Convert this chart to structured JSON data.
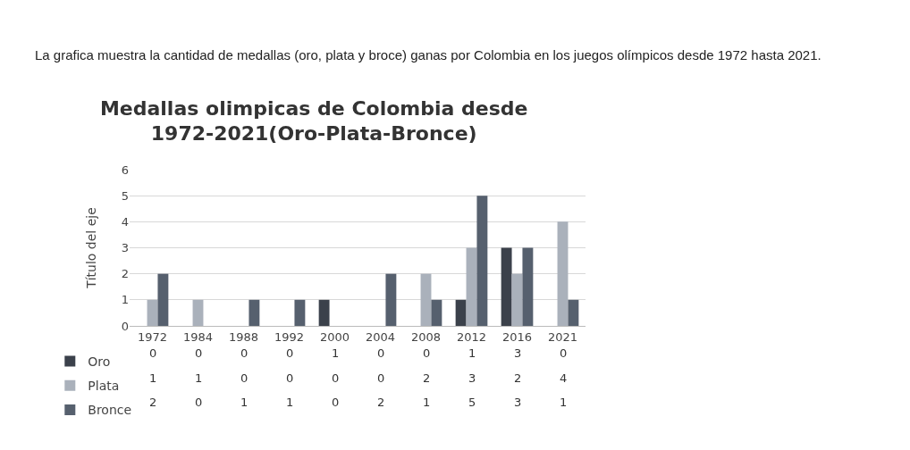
{
  "chart_data": {
    "type": "bar",
    "title": "Medallas olimpicas de Colombia desde\n1972-2021(Oro-Plata-Bronce)",
    "ylabel": "Título del eje",
    "annotations": [
      "La grafica muestra la cantidad de medallas (oro, plata y broce) ganas por Colombia en los juegos olímpicos desde 1972 hasta 2021."
    ],
    "categories": [
      "1972",
      "1984",
      "1988",
      "1992",
      "2000",
      "2004",
      "2008",
      "2012",
      "2016",
      "2021"
    ],
    "series": [
      {
        "name": "Oro",
        "color": "#3b414b",
        "values": [
          0,
          0,
          0,
          0,
          1,
          0,
          0,
          1,
          3,
          0
        ]
      },
      {
        "name": "Plata",
        "color": "#aab1bb",
        "values": [
          1,
          1,
          0,
          0,
          0,
          0,
          2,
          3,
          2,
          4
        ]
      },
      {
        "name": "Bronce",
        "color": "#56606e",
        "values": [
          2,
          0,
          1,
          1,
          0,
          2,
          1,
          5,
          3,
          1
        ]
      }
    ],
    "ylim": [
      0,
      6
    ],
    "yticks": [
      0,
      1,
      2,
      3,
      4,
      5,
      6
    ],
    "grid": "y",
    "legend": "bottom left",
    "data_labels": true
  }
}
